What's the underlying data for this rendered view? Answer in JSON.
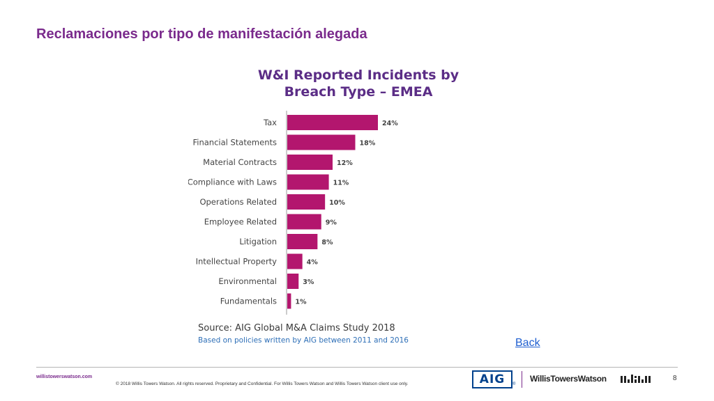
{
  "slide": {
    "title": "Reclamaciones por tipo de manifestación alegada",
    "back_label": "Back",
    "page_number": "8"
  },
  "footer": {
    "url": "willistowerswatson.com",
    "copyright": "© 2018 Willis Towers Watson. All rights reserved. Proprietary and Confidential. For Willis Towers Watson and Willis Towers Watson client use only."
  },
  "logos": {
    "aig": "AIG",
    "aig_reg": "®",
    "wtw": "WillisTowersWatson"
  },
  "colors": {
    "title": "#7a2a8c",
    "bar": "#b3166e",
    "chart_title": "#5b2d86",
    "source_note": "#2e6fb7"
  },
  "chart_data": {
    "type": "bar",
    "orientation": "horizontal",
    "title_line1": "W&I Reported Incidents by",
    "title_line2": "Breach Type – EMEA",
    "categories": [
      "Tax",
      "Financial Statements",
      "Material Contracts",
      "Compliance with Laws",
      "Operations Related",
      "Employee Related",
      "Litigation",
      "Intellectual Property",
      "Environmental",
      "Fundamentals"
    ],
    "values": [
      24,
      18,
      12,
      11,
      10,
      9,
      8,
      4,
      3,
      1
    ],
    "data_labels": [
      "24%",
      "18%",
      "12%",
      "11%",
      "10%",
      "9%",
      "8%",
      "4%",
      "3%",
      "1%"
    ],
    "value_unit": "%",
    "source": "Source: AIG Global M&A Claims Study 2018",
    "note": "Based on policies written by AIG between 2011 and 2016"
  }
}
